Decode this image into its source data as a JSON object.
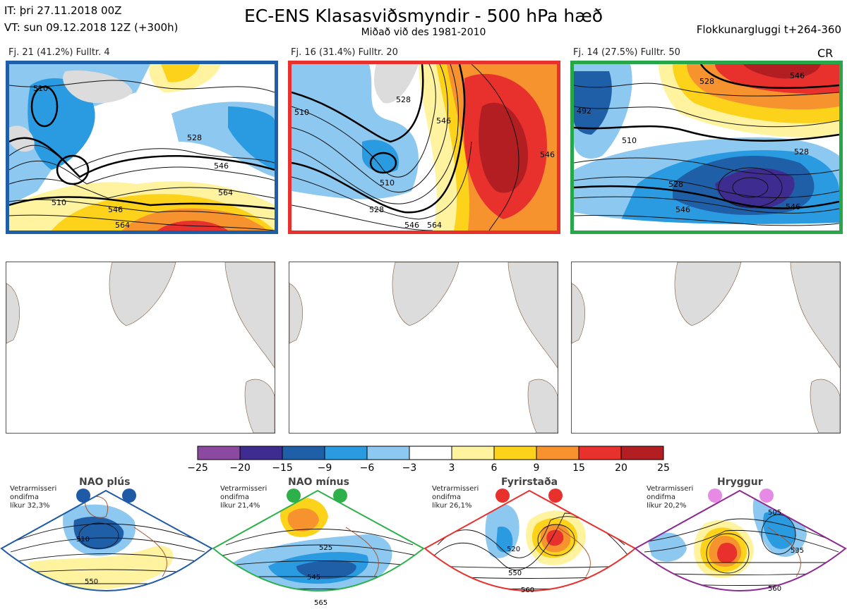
{
  "header": {
    "it_line": "IT: þri 27.11.2018 00Z",
    "vt_line": "VT: sun 09.12.2018 12Z  (+300h)",
    "title": "EC-ENS Klasasviðsmyndir - 500 hPa hæð",
    "subtitle": "Miðað við des 1981-2010",
    "window": "Flokkunargluggi t+264-360"
  },
  "clusters": [
    {
      "caption": "Fj. 21 (41.2%)   Fulltr. 4",
      "frame_color": "#1f5fa8",
      "labels": [
        "510",
        "528",
        "546",
        "564",
        "510",
        "546",
        "564"
      ]
    },
    {
      "caption": "Fj. 16 (31.4%)   Fulltr. 20",
      "frame_color": "#e8302d",
      "labels": [
        "510",
        "528",
        "546",
        "546",
        "510",
        "528",
        "546",
        "564"
      ]
    },
    {
      "caption": "Fj. 14 (27.5%)   Fulltr. 50",
      "frame_color": "#27a74a",
      "labels": [
        "546",
        "528",
        "492",
        "510",
        "528",
        "528",
        "546",
        "546"
      ]
    }
  ],
  "cr_label": "CR",
  "colorbar": {
    "ticks": [
      "−25",
      "−20",
      "−15",
      "−9",
      "−6",
      "−3",
      "3",
      "6",
      "9",
      "15",
      "20",
      "25"
    ],
    "colors": [
      "#8b4aa0",
      "#3f2c91",
      "#1f5fa8",
      "#2a9be0",
      "#8cc8ef",
      "#ffffff",
      "#fff3a0",
      "#fcd21b",
      "#f7932f",
      "#e8302d",
      "#b31e22"
    ]
  },
  "regimes": [
    {
      "name": "NAO plús",
      "note1": "Vetrarmisseri",
      "note2": "ondifma",
      "note3": "líkur 32,3%",
      "color": "#1e5aa6",
      "labels": [
        "510",
        "550"
      ]
    },
    {
      "name": "NAO mínus",
      "note1": "Vetrarmisseri",
      "note2": "ondifma",
      "note3": "líkur 21,4%",
      "color": "#2db04a",
      "labels": [
        "525",
        "545",
        "565"
      ]
    },
    {
      "name": "Fyrirstaða",
      "note1": "Vetrarmisseri",
      "note2": "ondifma",
      "note3": "líkur 26,1%",
      "color": "#e8302d",
      "labels": [
        "520",
        "550",
        "560"
      ]
    },
    {
      "name": "Hryggur",
      "note1": "Vetrarmisseri",
      "note2": "ondifma",
      "note3": "líkur 20,2%",
      "color": "#e68ae6",
      "labels": [
        "505",
        "535",
        "560"
      ]
    }
  ]
}
